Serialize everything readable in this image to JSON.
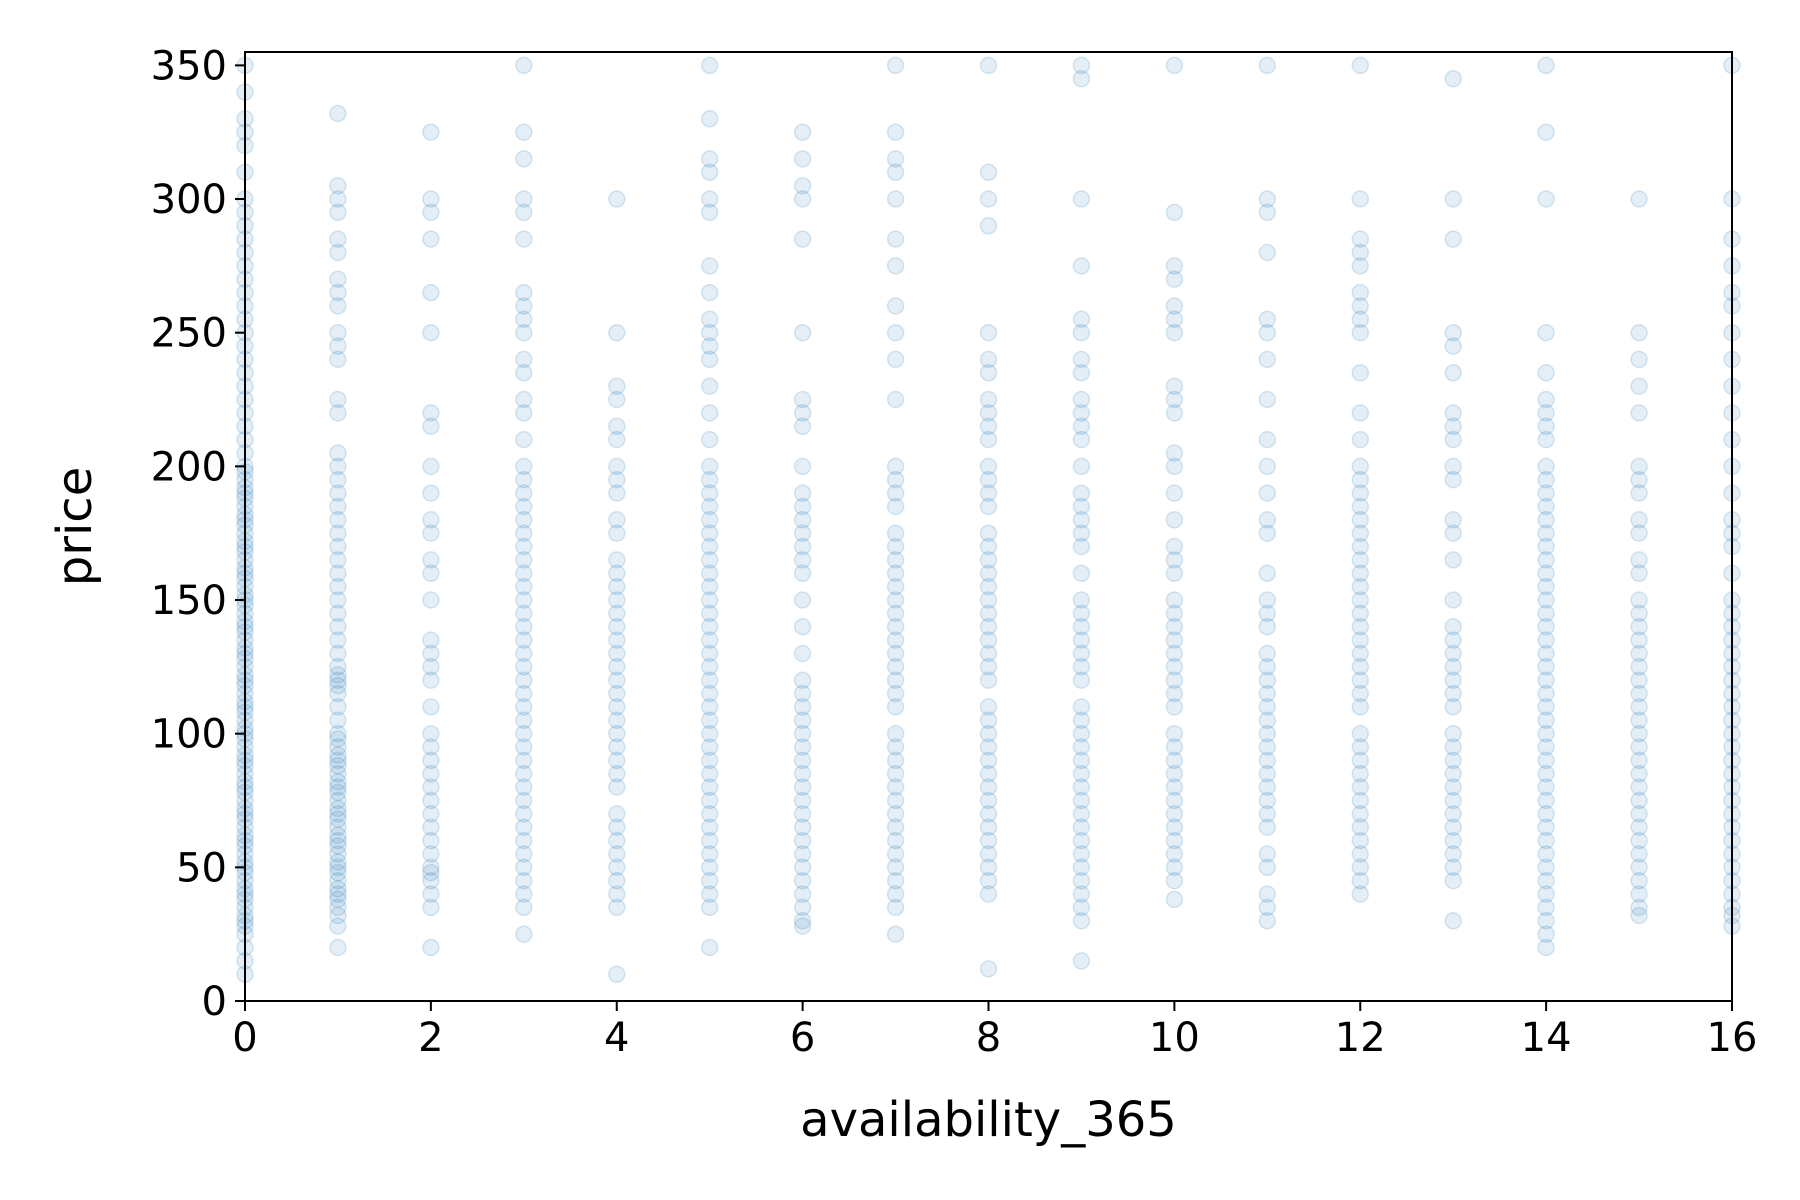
{
  "chart_data": {
    "type": "scatter",
    "title": "",
    "xlabel": "availability_365",
    "ylabel": "price",
    "xlim": [
      0,
      16
    ],
    "ylim": [
      0,
      355
    ],
    "xticks": [
      0,
      2,
      4,
      6,
      8,
      10,
      12,
      14,
      16
    ],
    "yticks": [
      0,
      50,
      100,
      150,
      200,
      250,
      300,
      350
    ],
    "grid": false,
    "legend": "none",
    "marker_color": "#1f77b4",
    "marker_alpha": 0.12,
    "points": [
      {
        "x": 0,
        "y": [
          10,
          15,
          20,
          25,
          28,
          30,
          32,
          35,
          38,
          40,
          42,
          45,
          48,
          50,
          52,
          55,
          58,
          60,
          62,
          65,
          68,
          70,
          72,
          75,
          78,
          80,
          82,
          85,
          88,
          90,
          92,
          95,
          98,
          100,
          102,
          105,
          108,
          110,
          112,
          115,
          118,
          120,
          122,
          125,
          128,
          130,
          132,
          135,
          138,
          140,
          142,
          145,
          148,
          150,
          152,
          155,
          158,
          160,
          162,
          165,
          168,
          170,
          172,
          175,
          178,
          180,
          182,
          185,
          188,
          190,
          192,
          195,
          198,
          200,
          205,
          210,
          215,
          220,
          225,
          230,
          235,
          240,
          245,
          250,
          255,
          260,
          265,
          270,
          275,
          280,
          285,
          290,
          295,
          300,
          310,
          320,
          325,
          330,
          340,
          350
        ]
      },
      {
        "x": 1,
        "y": [
          20,
          28,
          32,
          35,
          38,
          40,
          42,
          45,
          48,
          50,
          52,
          55,
          58,
          60,
          62,
          65,
          68,
          70,
          72,
          75,
          78,
          80,
          82,
          85,
          88,
          90,
          92,
          95,
          98,
          100,
          105,
          110,
          115,
          118,
          120,
          122,
          125,
          130,
          135,
          140,
          145,
          150,
          155,
          160,
          165,
          170,
          175,
          180,
          185,
          190,
          195,
          200,
          205,
          220,
          225,
          240,
          245,
          250,
          260,
          265,
          270,
          280,
          285,
          295,
          300,
          305,
          332
        ]
      },
      {
        "x": 2,
        "y": [
          20,
          35,
          40,
          45,
          48,
          50,
          55,
          60,
          65,
          70,
          75,
          80,
          85,
          90,
          95,
          100,
          110,
          120,
          125,
          130,
          135,
          150,
          160,
          165,
          175,
          180,
          190,
          200,
          215,
          220,
          250,
          265,
          285,
          295,
          300,
          325
        ]
      },
      {
        "x": 3,
        "y": [
          25,
          35,
          40,
          45,
          50,
          55,
          60,
          65,
          70,
          75,
          80,
          85,
          90,
          95,
          100,
          105,
          110,
          115,
          120,
          125,
          130,
          135,
          140,
          145,
          150,
          155,
          160,
          165,
          170,
          175,
          180,
          185,
          190,
          195,
          200,
          210,
          220,
          225,
          235,
          240,
          250,
          255,
          260,
          265,
          285,
          295,
          300,
          315,
          325,
          350
        ]
      },
      {
        "x": 4,
        "y": [
          10,
          35,
          40,
          45,
          50,
          55,
          60,
          65,
          70,
          80,
          85,
          90,
          95,
          100,
          105,
          110,
          115,
          120,
          125,
          130,
          135,
          140,
          145,
          150,
          155,
          160,
          165,
          175,
          180,
          190,
          195,
          200,
          210,
          215,
          225,
          230,
          250,
          300
        ]
      },
      {
        "x": 5,
        "y": [
          20,
          35,
          40,
          45,
          50,
          55,
          60,
          65,
          70,
          75,
          80,
          85,
          90,
          95,
          100,
          105,
          110,
          115,
          120,
          125,
          130,
          135,
          140,
          145,
          150,
          155,
          160,
          165,
          170,
          175,
          180,
          185,
          190,
          195,
          200,
          210,
          220,
          230,
          240,
          245,
          250,
          255,
          265,
          275,
          295,
          300,
          310,
          315,
          330,
          350
        ]
      },
      {
        "x": 6,
        "y": [
          28,
          30,
          35,
          40,
          45,
          50,
          55,
          60,
          65,
          70,
          75,
          80,
          85,
          90,
          95,
          100,
          105,
          110,
          115,
          120,
          130,
          140,
          150,
          160,
          165,
          170,
          175,
          180,
          185,
          190,
          200,
          215,
          220,
          225,
          250,
          285,
          300,
          305,
          315,
          325
        ]
      },
      {
        "x": 7,
        "y": [
          25,
          35,
          40,
          45,
          50,
          55,
          60,
          65,
          70,
          75,
          80,
          85,
          90,
          95,
          100,
          110,
          115,
          120,
          125,
          130,
          135,
          140,
          145,
          150,
          155,
          160,
          165,
          170,
          175,
          185,
          190,
          195,
          200,
          225,
          240,
          250,
          260,
          275,
          285,
          300,
          310,
          315,
          325,
          350
        ]
      },
      {
        "x": 8,
        "y": [
          12,
          40,
          45,
          50,
          55,
          60,
          65,
          70,
          75,
          80,
          85,
          90,
          95,
          100,
          105,
          110,
          120,
          125,
          130,
          135,
          140,
          145,
          150,
          155,
          160,
          165,
          170,
          175,
          185,
          190,
          195,
          200,
          210,
          215,
          220,
          225,
          235,
          240,
          250,
          290,
          300,
          310,
          350
        ]
      },
      {
        "x": 9,
        "y": [
          15,
          30,
          35,
          40,
          45,
          50,
          55,
          60,
          65,
          70,
          75,
          80,
          85,
          90,
          95,
          100,
          105,
          110,
          120,
          125,
          130,
          135,
          140,
          145,
          150,
          160,
          170,
          175,
          180,
          185,
          190,
          200,
          210,
          215,
          220,
          225,
          235,
          240,
          250,
          255,
          275,
          300,
          345,
          350
        ]
      },
      {
        "x": 10,
        "y": [
          38,
          45,
          50,
          55,
          60,
          65,
          70,
          75,
          80,
          85,
          90,
          95,
          100,
          110,
          115,
          120,
          125,
          130,
          135,
          140,
          145,
          150,
          160,
          165,
          170,
          180,
          190,
          200,
          205,
          220,
          225,
          230,
          250,
          255,
          260,
          270,
          275,
          295,
          350
        ]
      },
      {
        "x": 11,
        "y": [
          30,
          35,
          40,
          50,
          55,
          65,
          70,
          75,
          80,
          85,
          90,
          95,
          100,
          105,
          110,
          115,
          120,
          125,
          130,
          140,
          145,
          150,
          160,
          175,
          180,
          190,
          200,
          210,
          225,
          240,
          250,
          255,
          280,
          295,
          300,
          350
        ]
      },
      {
        "x": 12,
        "y": [
          40,
          45,
          50,
          55,
          60,
          65,
          70,
          75,
          80,
          85,
          90,
          95,
          100,
          110,
          115,
          120,
          125,
          130,
          135,
          140,
          145,
          150,
          155,
          160,
          165,
          170,
          175,
          180,
          185,
          190,
          195,
          200,
          210,
          220,
          235,
          250,
          255,
          260,
          265,
          275,
          280,
          285,
          300,
          350
        ]
      },
      {
        "x": 13,
        "y": [
          30,
          45,
          50,
          55,
          60,
          65,
          70,
          75,
          80,
          85,
          90,
          95,
          100,
          110,
          115,
          120,
          125,
          130,
          135,
          140,
          150,
          165,
          175,
          180,
          195,
          200,
          210,
          215,
          220,
          235,
          245,
          250,
          285,
          300,
          345
        ]
      },
      {
        "x": 14,
        "y": [
          20,
          25,
          30,
          35,
          40,
          45,
          50,
          55,
          60,
          65,
          70,
          75,
          80,
          85,
          90,
          95,
          100,
          105,
          110,
          115,
          120,
          125,
          130,
          135,
          140,
          145,
          150,
          155,
          160,
          165,
          170,
          175,
          180,
          185,
          190,
          195,
          200,
          210,
          215,
          220,
          225,
          235,
          250,
          300,
          325,
          350
        ]
      },
      {
        "x": 15,
        "y": [
          32,
          35,
          40,
          45,
          50,
          55,
          60,
          65,
          70,
          75,
          80,
          85,
          90,
          95,
          100,
          105,
          110,
          115,
          120,
          125,
          130,
          135,
          140,
          145,
          150,
          160,
          165,
          175,
          180,
          190,
          195,
          200,
          220,
          230,
          240,
          250,
          300
        ]
      },
      {
        "x": 16,
        "y": [
          28,
          32,
          35,
          40,
          45,
          50,
          55,
          60,
          65,
          70,
          75,
          80,
          85,
          90,
          95,
          100,
          105,
          110,
          115,
          120,
          125,
          130,
          135,
          140,
          145,
          150,
          160,
          170,
          175,
          180,
          190,
          200,
          210,
          220,
          230,
          240,
          250,
          260,
          265,
          275,
          285,
          300,
          350
        ]
      }
    ]
  }
}
